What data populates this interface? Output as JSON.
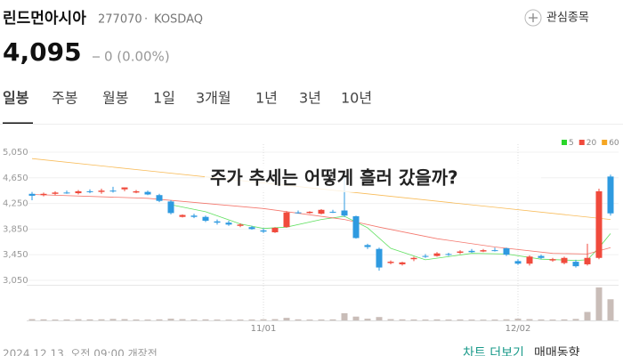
{
  "header": {
    "name": "린드먼아시아",
    "code": "277070",
    "separator": "·",
    "market": "KOSDAQ",
    "watch_button": "관심종목"
  },
  "quote": {
    "price": "4,095",
    "change": "0 (0.00%)"
  },
  "tabs": {
    "items": [
      "일봉",
      "주봉",
      "월봉",
      "1일",
      "3개월",
      "1년",
      "3년",
      "10년"
    ],
    "selected": 0
  },
  "chart_data": {
    "type": "candlestick",
    "title": "주가 추세는 어떻게 흘러 갔을까?",
    "categories": [
      null,
      null,
      null,
      null,
      null,
      null,
      null,
      null,
      null,
      null,
      null,
      null,
      null,
      null,
      null,
      null,
      null,
      null,
      null,
      null,
      "11/01",
      null,
      null,
      null,
      null,
      null,
      null,
      null,
      null,
      null,
      null,
      null,
      null,
      null,
      null,
      null,
      null,
      null,
      null,
      null,
      null,
      null,
      "12/02",
      null,
      null,
      null,
      null,
      null,
      null,
      null,
      null
    ],
    "open": [
      4400,
      4380,
      4400,
      4420,
      4410,
      4440,
      4430,
      4450,
      4470,
      4420,
      4430,
      4380,
      4280,
      4040,
      4060,
      4040,
      3970,
      3950,
      3900,
      3880,
      3830,
      3800,
      3880,
      4110,
      4100,
      4090,
      4120,
      4140,
      4050,
      3600,
      3540,
      3320,
      3300,
      3380,
      3430,
      3430,
      3460,
      3480,
      3510,
      3500,
      3520,
      3550,
      3350,
      3310,
      3430,
      3360,
      3320,
      3340,
      3300,
      3400,
      4670
    ],
    "high": [
      4430,
      4420,
      4440,
      4450,
      4460,
      4470,
      4480,
      4510,
      4500,
      4460,
      4450,
      4400,
      4300,
      4080,
      4090,
      4060,
      4000,
      3980,
      3940,
      3900,
      3860,
      3880,
      4130,
      4140,
      4130,
      4160,
      4150,
      4700,
      4060,
      3620,
      3560,
      3360,
      3340,
      3420,
      3460,
      3490,
      3480,
      3520,
      3540,
      3540,
      3560,
      3560,
      3380,
      3440,
      3450,
      3400,
      3420,
      3370,
      3620,
      4480,
      4700
    ],
    "low": [
      4300,
      4360,
      4380,
      4400,
      4390,
      4410,
      4400,
      4420,
      4440,
      4410,
      4380,
      4270,
      4080,
      4030,
      4020,
      3960,
      3920,
      3900,
      3880,
      3840,
      3790,
      3790,
      3870,
      4090,
      4090,
      4080,
      4100,
      4040,
      3700,
      3540,
      3200,
      3300,
      3280,
      3350,
      3400,
      3420,
      3430,
      3460,
      3480,
      3490,
      3500,
      3430,
      3290,
      3280,
      3380,
      3340,
      3300,
      3250,
      3280,
      3380,
      4060
    ],
    "close": [
      4370,
      4400,
      4420,
      4410,
      4440,
      4430,
      4450,
      4440,
      4500,
      4440,
      4390,
      4290,
      4100,
      4070,
      4040,
      3980,
      3950,
      3920,
      3920,
      3850,
      3810,
      3870,
      4110,
      4100,
      4120,
      4150,
      4110,
      4060,
      3710,
      3570,
      3250,
      3340,
      3330,
      3400,
      3420,
      3470,
      3450,
      3500,
      3490,
      3520,
      3510,
      3450,
      3310,
      3420,
      3400,
      3380,
      3400,
      3270,
      3400,
      4440,
      4095
    ],
    "up_color": "#f04a3c",
    "down_color": "#2e9ae0",
    "ylim": [
      2980,
      5175
    ],
    "yticks": [
      {
        "value": 3050,
        "label": "3,050"
      },
      {
        "value": 3450,
        "label": "3,450"
      },
      {
        "value": 3850,
        "label": "3,850"
      },
      {
        "value": 4250,
        "label": "4,250"
      },
      {
        "value": 4650,
        "label": "4,650"
      },
      {
        "value": 5050,
        "label": "5,050"
      }
    ],
    "grid": true,
    "moving_averages": [
      {
        "name": "5",
        "color": "#2bd62b",
        "x": [
          12,
          15,
          18,
          20,
          22,
          25,
          27,
          29,
          31,
          34,
          38,
          41,
          44,
          47,
          48,
          49,
          50
        ],
        "values": [
          4230,
          4120,
          3930,
          3860,
          3880,
          4000,
          4050,
          3870,
          3550,
          3370,
          3470,
          3460,
          3380,
          3360,
          3370,
          3560,
          3780
        ]
      },
      {
        "name": "20",
        "color": "#f04a3c",
        "x": [
          0,
          10,
          20,
          27,
          30,
          35,
          40,
          45,
          48,
          50
        ],
        "values": [
          4390,
          4330,
          4170,
          4000,
          3880,
          3700,
          3570,
          3470,
          3460,
          3560
        ]
      },
      {
        "name": "60",
        "color": "#f5a623",
        "x": [
          0,
          10,
          20,
          30,
          40,
          50
        ],
        "values": [
          4950,
          4760,
          4570,
          4380,
          4190,
          4000
        ]
      }
    ],
    "volume": {
      "color": "#c9bdb8",
      "ylim": [
        0,
        800000
      ],
      "values": [
        30000,
        25000,
        20000,
        22000,
        28000,
        24000,
        26000,
        35000,
        30000,
        22000,
        20000,
        25000,
        40000,
        30000,
        22000,
        25000,
        20000,
        18000,
        20000,
        22000,
        26000,
        30000,
        60000,
        25000,
        20000,
        22000,
        24000,
        170000,
        90000,
        40000,
        80000,
        30000,
        25000,
        22000,
        20000,
        24000,
        20000,
        22000,
        20000,
        18000,
        20000,
        26000,
        40000,
        30000,
        22000,
        20000,
        24000,
        35000,
        200000,
        780000,
        500000
      ]
    }
  },
  "footer": {
    "timestamp": "2024.12.13. 오전 09:00 개장전",
    "links": [
      "차트 더보기",
      "매매동향"
    ]
  }
}
